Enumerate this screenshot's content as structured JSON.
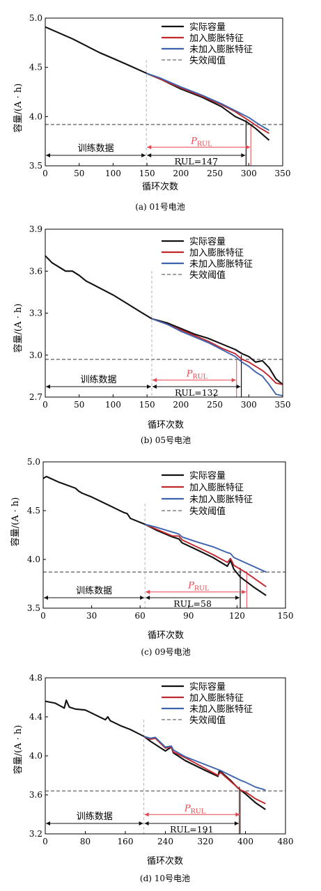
{
  "figure": {
    "legend_labels": [
      "实际容量",
      "加入膨胀特征",
      "未加入膨胀特征",
      "失效阈值"
    ],
    "colors": {
      "actual": "#111111",
      "with": "#c0272d",
      "without": "#3d63ad",
      "threshold": "#808080",
      "pred": "#e8474f"
    }
  },
  "chart_data": [
    {
      "type": "line",
      "caption": "(a) 01号电池",
      "xlabel": "循环次数",
      "ylabel": "容量/(A · h)",
      "xlim": [
        0,
        350
      ],
      "ylim": [
        3.5,
        5.0
      ],
      "xticks": [
        0,
        50,
        100,
        150,
        200,
        250,
        300,
        350
      ],
      "xtick_labels": [
        "0",
        "50",
        "100",
        "150",
        "200",
        "250",
        "300",
        "350"
      ],
      "yticks": [
        3.5,
        4.0,
        4.5,
        5.0
      ],
      "ytick_labels": [
        "3.5",
        "4.0",
        "4.5",
        "5.0"
      ],
      "threshold": 3.92,
      "training_end": 149,
      "actual_eol": 296,
      "predicted_eol": 303,
      "train_label": "训练数据",
      "rul_label": "RUL=147",
      "pred_label": "P",
      "pred_sub": "RUL",
      "series": [
        {
          "name": "实际容量",
          "key": "actual",
          "x": [
            0,
            20,
            40,
            60,
            80,
            100,
            120,
            149,
            170,
            200,
            230,
            260,
            280,
            296,
            310,
            320,
            330
          ],
          "y": [
            4.91,
            4.85,
            4.79,
            4.72,
            4.65,
            4.59,
            4.53,
            4.44,
            4.38,
            4.28,
            4.2,
            4.1,
            4.0,
            3.95,
            3.88,
            3.82,
            3.76
          ]
        },
        {
          "name": "加入膨胀特征",
          "key": "with",
          "x": [
            149,
            170,
            200,
            230,
            260,
            280,
            300,
            315,
            330
          ],
          "y": [
            4.44,
            4.38,
            4.29,
            4.21,
            4.12,
            4.05,
            3.96,
            3.89,
            3.83
          ]
        },
        {
          "name": "未加入膨胀特征",
          "key": "without",
          "x": [
            149,
            170,
            200,
            230,
            260,
            280,
            300,
            315,
            330
          ],
          "y": [
            4.44,
            4.39,
            4.3,
            4.22,
            4.13,
            4.06,
            3.99,
            3.92,
            3.86
          ]
        }
      ]
    },
    {
      "type": "line",
      "caption": "(b) 05号电池",
      "xlabel": "循环次数",
      "ylabel": "容量/(A · h)",
      "xlim": [
        0,
        350
      ],
      "ylim": [
        2.7,
        3.9
      ],
      "xticks": [
        0,
        50,
        100,
        150,
        200,
        250,
        300,
        350
      ],
      "xtick_labels": [
        "0",
        "50",
        "100",
        "150",
        "200",
        "250",
        "300",
        "350"
      ],
      "yticks": [
        2.7,
        3.0,
        3.3,
        3.6,
        3.9
      ],
      "ytick_labels": [
        "2.7",
        "3.0",
        "3.3",
        "3.6",
        "3.9"
      ],
      "threshold": 2.97,
      "training_end": 157,
      "actual_eol": 289,
      "predicted_eol": 282,
      "train_label": "训练数据",
      "rul_label": "RUL=132",
      "pred_label": "P",
      "pred_sub": "RUL",
      "series": [
        {
          "name": "实际容量",
          "key": "actual",
          "x": [
            0,
            10,
            20,
            30,
            40,
            50,
            60,
            80,
            100,
            120,
            140,
            157,
            180,
            200,
            220,
            240,
            260,
            280,
            290,
            300,
            310,
            320,
            330,
            340,
            350
          ],
          "y": [
            3.71,
            3.66,
            3.63,
            3.6,
            3.6,
            3.57,
            3.53,
            3.48,
            3.43,
            3.37,
            3.31,
            3.26,
            3.23,
            3.19,
            3.15,
            3.12,
            3.08,
            3.04,
            3.01,
            2.99,
            2.95,
            2.96,
            2.91,
            2.83,
            2.79
          ]
        },
        {
          "name": "加入膨胀特征",
          "key": "with",
          "x": [
            157,
            180,
            200,
            220,
            240,
            260,
            280,
            290,
            300,
            310,
            320,
            330,
            340,
            350
          ],
          "y": [
            3.26,
            3.22,
            3.18,
            3.14,
            3.1,
            3.05,
            3.01,
            2.97,
            2.95,
            2.92,
            2.89,
            2.85,
            2.8,
            2.79
          ]
        },
        {
          "name": "未加入膨胀特征",
          "key": "without",
          "x": [
            157,
            180,
            200,
            220,
            240,
            260,
            280,
            290,
            300,
            310,
            320,
            330,
            340,
            350
          ],
          "y": [
            3.26,
            3.22,
            3.17,
            3.13,
            3.09,
            3.04,
            2.99,
            2.95,
            2.92,
            2.88,
            2.85,
            2.79,
            2.72,
            2.71
          ]
        }
      ]
    },
    {
      "type": "line",
      "caption": "(c) 09号电池",
      "xlabel": "循环次数",
      "ylabel": "容量/(A · h)",
      "xlim": [
        0,
        150
      ],
      "ylim": [
        3.5,
        5.0
      ],
      "xticks": [
        0,
        30,
        60,
        90,
        120,
        150
      ],
      "xtick_labels": [
        "0",
        "30",
        "60",
        "90",
        "120",
        "150"
      ],
      "yticks": [
        3.5,
        4.0,
        4.5,
        5.0
      ],
      "ytick_labels": [
        "3.5",
        "4.0",
        "4.5",
        "5.0"
      ],
      "threshold": 3.87,
      "training_end": 63,
      "actual_eol": 122,
      "predicted_eol": 126,
      "train_label": "训练数据",
      "rul_label": "RUL=58",
      "pred_label": "P",
      "pred_sub": "RUL",
      "series": [
        {
          "name": "实际容量",
          "key": "actual",
          "x": [
            0,
            2,
            10,
            20,
            22,
            24,
            30,
            40,
            50,
            52,
            54,
            63,
            70,
            80,
            84,
            86,
            95,
            105,
            114,
            116,
            118,
            122,
            130,
            138
          ],
          "y": [
            4.83,
            4.85,
            4.79,
            4.73,
            4.7,
            4.68,
            4.64,
            4.56,
            4.48,
            4.47,
            4.42,
            4.36,
            4.3,
            4.23,
            4.21,
            4.17,
            4.1,
            4.02,
            3.93,
            3.99,
            3.9,
            3.82,
            3.72,
            3.63
          ]
        },
        {
          "name": "加入膨胀特征",
          "key": "with",
          "x": [
            63,
            70,
            80,
            84,
            86,
            95,
            105,
            114,
            116,
            118,
            126,
            138
          ],
          "y": [
            4.36,
            4.31,
            4.24,
            4.24,
            4.2,
            4.13,
            4.05,
            3.97,
            4.01,
            3.94,
            3.86,
            3.72
          ]
        },
        {
          "name": "未加入膨胀特征",
          "key": "without",
          "x": [
            63,
            70,
            80,
            84,
            86,
            95,
            105,
            114,
            116,
            118,
            126,
            138
          ],
          "y": [
            4.36,
            4.33,
            4.28,
            4.26,
            4.23,
            4.18,
            4.13,
            4.07,
            4.06,
            4.02,
            3.96,
            3.87
          ]
        }
      ]
    },
    {
      "type": "line",
      "caption": "(d) 10号电池",
      "xlabel": "循环次数",
      "ylabel": "容量/(A · h)",
      "xlim": [
        0,
        480
      ],
      "ylim": [
        3.2,
        4.8
      ],
      "xticks": [
        0,
        80,
        160,
        240,
        320,
        400,
        480
      ],
      "xtick_labels": [
        "0",
        "80",
        "160",
        "240",
        "320",
        "400",
        "480"
      ],
      "yticks": [
        3.2,
        3.6,
        4.0,
        4.4,
        4.8
      ],
      "ytick_labels": [
        "3.2",
        "3.6",
        "4.0",
        "4.4",
        "4.8"
      ],
      "threshold": 3.64,
      "training_end": 197,
      "actual_eol": 388,
      "predicted_eol": 390,
      "train_label": "训练数据",
      "rul_label": "RUL=191",
      "pred_label": "P",
      "pred_sub": "RUL",
      "series": [
        {
          "name": "实际容量",
          "key": "actual",
          "x": [
            0,
            20,
            38,
            42,
            48,
            60,
            80,
            100,
            120,
            125,
            130,
            150,
            170,
            197,
            210,
            240,
            252,
            256,
            280,
            320,
            345,
            348,
            370,
            385,
            400,
            420,
            440
          ],
          "y": [
            4.56,
            4.54,
            4.49,
            4.57,
            4.5,
            4.48,
            4.47,
            4.42,
            4.37,
            4.4,
            4.36,
            4.31,
            4.27,
            4.2,
            4.15,
            4.05,
            4.09,
            4.03,
            3.95,
            3.85,
            3.79,
            3.85,
            3.75,
            3.67,
            3.61,
            3.52,
            3.45
          ]
        },
        {
          "name": "加入膨胀特征",
          "key": "with",
          "x": [
            197,
            210,
            220,
            240,
            252,
            256,
            280,
            320,
            345,
            350,
            370,
            390,
            400,
            420,
            440
          ],
          "y": [
            4.2,
            4.17,
            4.18,
            4.08,
            4.09,
            4.04,
            3.98,
            3.87,
            3.8,
            3.83,
            3.74,
            3.65,
            3.63,
            3.56,
            3.51
          ]
        },
        {
          "name": "未加入膨胀特征",
          "key": "without",
          "x": [
            197,
            210,
            220,
            240,
            252,
            256,
            280,
            320,
            345,
            350,
            370,
            390,
            400,
            420,
            440
          ],
          "y": [
            4.2,
            4.18,
            4.19,
            4.09,
            4.1,
            4.06,
            3.99,
            3.91,
            3.86,
            3.85,
            3.8,
            3.75,
            3.73,
            3.68,
            3.65
          ]
        }
      ]
    }
  ]
}
